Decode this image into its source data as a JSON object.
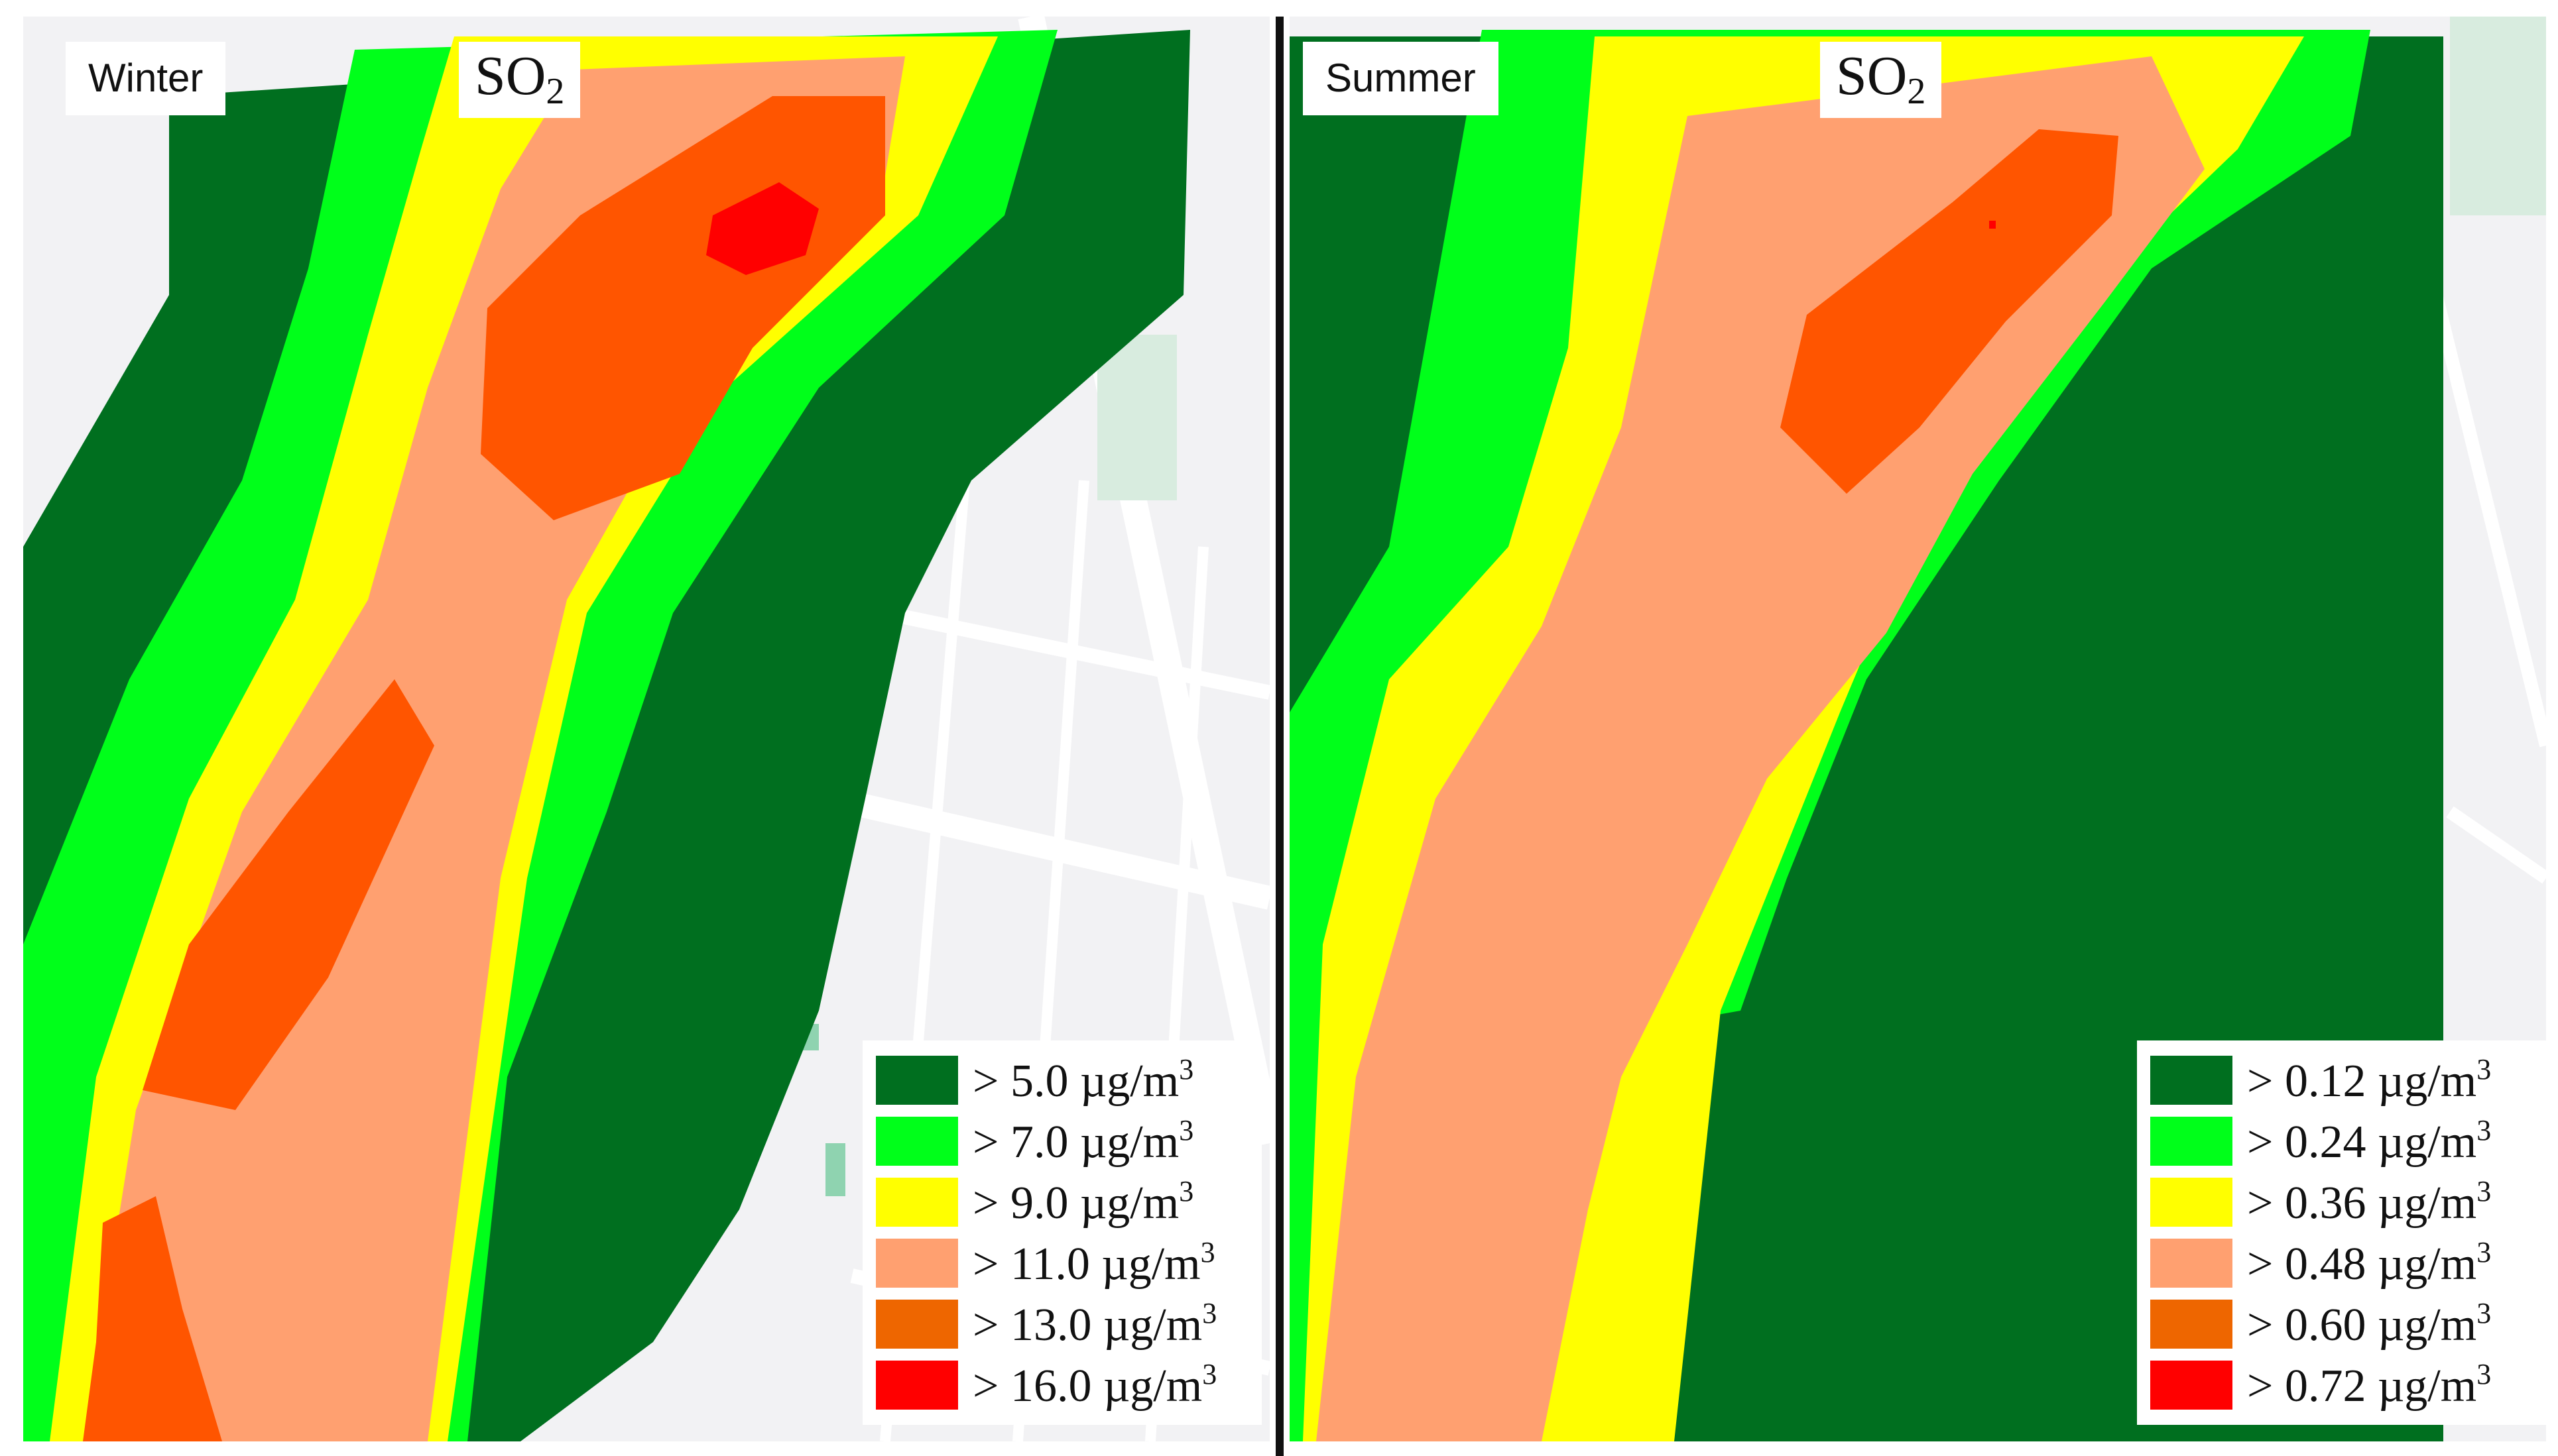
{
  "colors": {
    "background": "#f2f2f4",
    "road": "#ffffff",
    "park": "#cfe8d8",
    "level_5": "#006f1f",
    "level_4": "#00ff1a",
    "level_3": "#ffff00",
    "level_2": "#ffa070",
    "level_1": "#ff5500",
    "level_0": "#ff0000"
  },
  "panels": [
    {
      "season": "Winter",
      "pollutant": {
        "main": "SO",
        "sub": "2"
      },
      "legend": [
        {
          "value": "> 5.0 µg/m",
          "sup": "3",
          "color": "#006f1f"
        },
        {
          "value": "> 7.0 µg/m",
          "sup": "3",
          "color": "#00ff1a"
        },
        {
          "value": "> 9.0 µg/m",
          "sup": "3",
          "color": "#ffff00"
        },
        {
          "value": "> 11.0 µg/m",
          "sup": "3",
          "color": "#ffa070"
        },
        {
          "value": "> 13.0 µg/m",
          "sup": "3",
          "color": "#ee6600"
        },
        {
          "value": "> 16.0 µg/m",
          "sup": "3",
          "color": "#ff0000"
        }
      ]
    },
    {
      "season": "Summer",
      "pollutant": {
        "main": "SO",
        "sub": "2"
      },
      "legend": [
        {
          "value": "> 0.12 µg/m",
          "sup": "3",
          "color": "#006f1f"
        },
        {
          "value": "> 0.24 µg/m",
          "sup": "3",
          "color": "#00ff1a"
        },
        {
          "value": "> 0.36 µg/m",
          "sup": "3",
          "color": "#ffff00"
        },
        {
          "value": "> 0.48 µg/m",
          "sup": "3",
          "color": "#ffa070"
        },
        {
          "value": "> 0.60 µg/m",
          "sup": "3",
          "color": "#ee6600"
        },
        {
          "value": "> 0.72 µg/m",
          "sup": "3",
          "color": "#ff0000"
        }
      ]
    }
  ]
}
